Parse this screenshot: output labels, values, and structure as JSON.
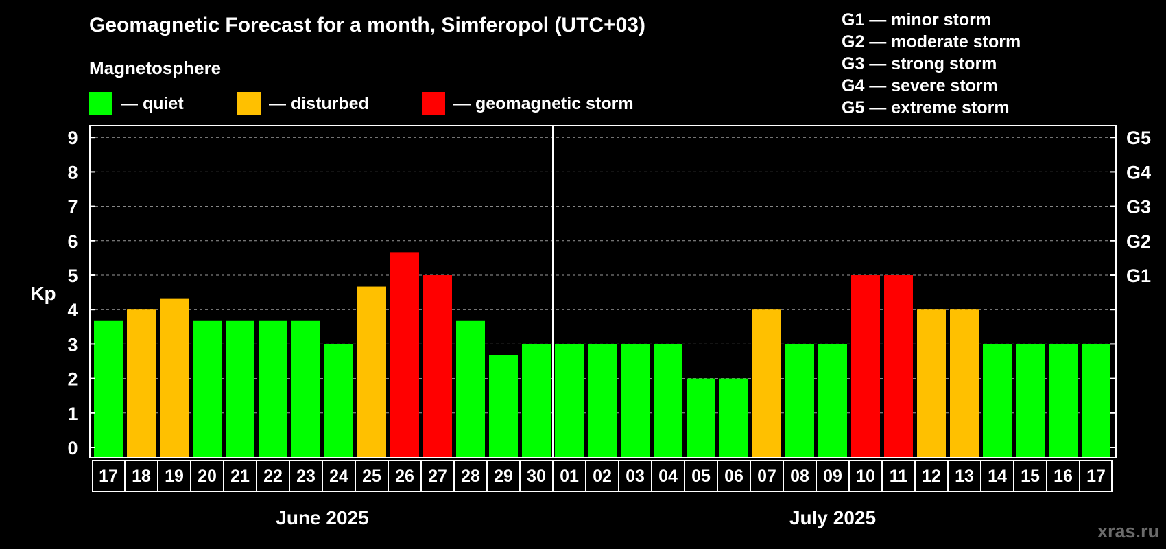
{
  "header": {
    "title": "Geomagnetic Forecast for a month, Simferopol (UTC+03)",
    "subtitle": "Magnetosphere"
  },
  "legend": [
    {
      "label": "— quiet",
      "color": "#00ff00"
    },
    {
      "label": "— disturbed",
      "color": "#ffc000"
    },
    {
      "label": "— geomagnetic storm",
      "color": "#ff0000"
    }
  ],
  "storm_levels": [
    "G1 — minor storm",
    "G2 — moderate storm",
    "G3 — strong storm",
    "G4 — severe storm",
    "G5 — extreme storm"
  ],
  "watermark": "xras.ru",
  "colors": {
    "quiet": "#00ff00",
    "disturbed": "#ffc000",
    "storm": "#ff0000",
    "background": "#000000",
    "grid": "#9a9a9a"
  },
  "chart_data": {
    "type": "bar",
    "title": "Geomagnetic Forecast for a month, Simferopol (UTC+03)",
    "ylabel": "Kp",
    "ylim": [
      0,
      9
    ],
    "yticks": [
      "0",
      "1",
      "2",
      "3",
      "4",
      "5",
      "6",
      "7",
      "8",
      "9"
    ],
    "right_labels": [
      {
        "value": 5,
        "label": "G1"
      },
      {
        "value": 6,
        "label": "G2"
      },
      {
        "value": 7,
        "label": "G3"
      },
      {
        "value": 8,
        "label": "G4"
      },
      {
        "value": 9,
        "label": "G5"
      }
    ],
    "grid": "horizontal dashed",
    "categories": [
      "17",
      "18",
      "19",
      "20",
      "21",
      "22",
      "23",
      "24",
      "25",
      "26",
      "27",
      "28",
      "29",
      "30",
      "01",
      "02",
      "03",
      "04",
      "05",
      "06",
      "07",
      "08",
      "09",
      "10",
      "11",
      "12",
      "13",
      "14",
      "15",
      "16",
      "17"
    ],
    "values": [
      3.67,
      4,
      4.33,
      3.67,
      3.67,
      3.67,
      3.67,
      3,
      4.67,
      5.67,
      5,
      3.67,
      2.67,
      3,
      3,
      3,
      3,
      3,
      2,
      2,
      4,
      3,
      3,
      5,
      5,
      4,
      4,
      3,
      3,
      3,
      3
    ],
    "levels": [
      "quiet",
      "disturbed",
      "disturbed",
      "quiet",
      "quiet",
      "quiet",
      "quiet",
      "quiet",
      "disturbed",
      "storm",
      "storm",
      "quiet",
      "quiet",
      "quiet",
      "quiet",
      "quiet",
      "quiet",
      "quiet",
      "quiet",
      "quiet",
      "disturbed",
      "quiet",
      "quiet",
      "storm",
      "storm",
      "disturbed",
      "disturbed",
      "quiet",
      "quiet",
      "quiet",
      "quiet"
    ],
    "months": [
      {
        "label": "June 2025",
        "start": 0,
        "end": 13
      },
      {
        "label": "July 2025",
        "start": 14,
        "end": 30
      }
    ]
  }
}
